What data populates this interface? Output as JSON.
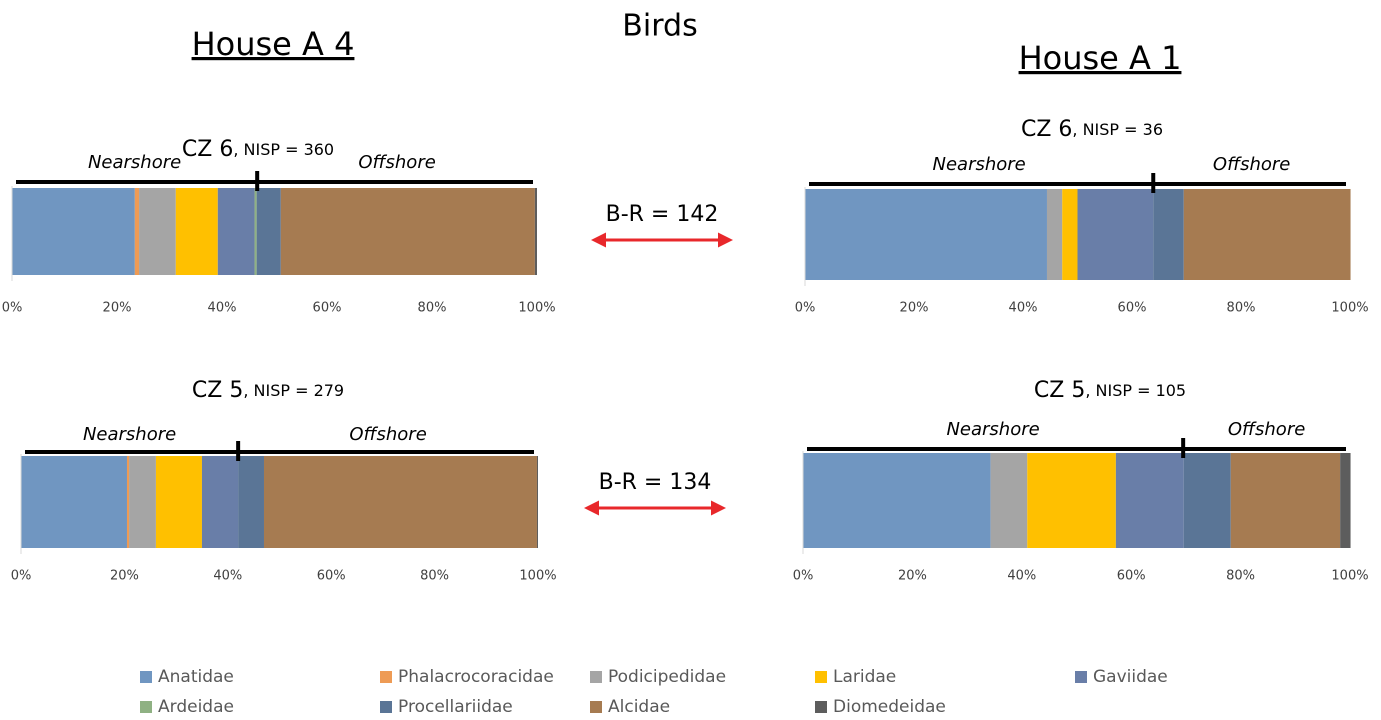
{
  "title": "Birds",
  "houses": [
    "House A 4",
    "House A 1"
  ],
  "annotations": [
    "B-R = 142",
    "B-R = 134"
  ],
  "series": [
    {
      "name": "Anatidae",
      "color": "#7096c1"
    },
    {
      "name": "Phalacrocoracidae",
      "color": "#ee9b55"
    },
    {
      "name": "Podicipedidae",
      "color": "#a5a5a5"
    },
    {
      "name": "Laridae",
      "color": "#ffc000"
    },
    {
      "name": "Gaviidae",
      "color": "#697ea8"
    },
    {
      "name": "Ardeidae",
      "color": "#8fb183"
    },
    {
      "name": "Procellariidae",
      "color": "#5a7596"
    },
    {
      "name": "Alcidae",
      "color": "#a67b51"
    },
    {
      "name": "Diomedeidae",
      "color": "#5d5d5d"
    }
  ],
  "chart_data": [
    {
      "type": "stacked-bar",
      "title": "CZ 6",
      "subtitle": ", NISP = 360",
      "zone_labels": [
        "Nearshore",
        "Offshore"
      ],
      "divider": 46.7,
      "values": [
        23.4,
        0.8,
        7.0,
        8.0,
        7.0,
        0.4,
        4.6,
        48.4,
        0.4
      ],
      "xlim": [
        0,
        100
      ],
      "xticks": [
        {
          "value": 0,
          "label": "0%"
        },
        {
          "value": 20,
          "label": "20%"
        },
        {
          "value": 40,
          "label": "40%"
        },
        {
          "value": 60,
          "label": "60%"
        },
        {
          "value": 80,
          "label": "80%"
        },
        {
          "value": 100,
          "label": "100%"
        }
      ]
    },
    {
      "type": "stacked-bar",
      "title": "CZ 6",
      "subtitle": ", NISP = 36",
      "zone_labels": [
        "Nearshore",
        "Offshore"
      ],
      "divider": 63.9,
      "values": [
        44.4,
        0,
        2.8,
        2.8,
        13.9,
        0,
        5.6,
        30.6,
        0
      ],
      "xlim": [
        0,
        100
      ],
      "xticks": [
        {
          "value": 0,
          "label": "0%"
        },
        {
          "value": 20,
          "label": "20%"
        },
        {
          "value": 40,
          "label": "40%"
        },
        {
          "value": 60,
          "label": "60%"
        },
        {
          "value": 80,
          "label": "80%"
        },
        {
          "value": 100,
          "label": "100%"
        }
      ]
    },
    {
      "type": "stacked-bar",
      "title": "CZ 5",
      "subtitle": ", NISP = 279",
      "zone_labels": [
        "Nearshore",
        "Offshore"
      ],
      "divider": 42.0,
      "values": [
        20.5,
        0.4,
        5.2,
        8.9,
        7.0,
        0,
        5.0,
        52.8,
        0.2
      ],
      "xlim": [
        0,
        100
      ],
      "xticks": [
        {
          "value": 0,
          "label": "0%"
        },
        {
          "value": 20,
          "label": "20%"
        },
        {
          "value": 40,
          "label": "40%"
        },
        {
          "value": 60,
          "label": "60%"
        },
        {
          "value": 80,
          "label": "80%"
        },
        {
          "value": 100,
          "label": "100%"
        }
      ]
    },
    {
      "type": "stacked-bar",
      "title": "CZ 5",
      "subtitle": ", NISP = 105",
      "zone_labels": [
        "Nearshore",
        "Offshore"
      ],
      "divider": 69.5,
      "values": [
        34.3,
        0,
        6.7,
        16.2,
        12.4,
        0,
        8.6,
        20.0,
        1.9
      ],
      "xlim": [
        0,
        100
      ],
      "xticks": [
        {
          "value": 0,
          "label": "0%"
        },
        {
          "value": 20,
          "label": "20%"
        },
        {
          "value": 40,
          "label": "40%"
        },
        {
          "value": 60,
          "label": "60%"
        },
        {
          "value": 80,
          "label": "80%"
        },
        {
          "value": 100,
          "label": "100%"
        }
      ]
    }
  ]
}
